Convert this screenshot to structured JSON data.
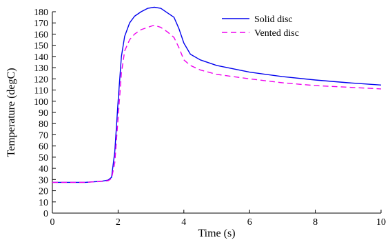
{
  "chart_data": {
    "type": "line",
    "title": "",
    "xlabel": "Time (s)",
    "ylabel": "Temperature (degC)",
    "xlim": [
      0,
      10
    ],
    "ylim": [
      0,
      180
    ],
    "xticks": [
      0,
      2,
      4,
      6,
      8,
      10
    ],
    "yticks": [
      0,
      10,
      20,
      30,
      40,
      50,
      60,
      70,
      80,
      90,
      100,
      110,
      120,
      130,
      140,
      150,
      160,
      170,
      180
    ],
    "grid": false,
    "legend": "top-right",
    "series": [
      {
        "name": "Solid disc",
        "color": "#0000ee",
        "dash": "solid",
        "x": [
          0,
          1.0,
          1.5,
          1.7,
          1.8,
          1.9,
          2.0,
          2.1,
          2.2,
          2.35,
          2.5,
          2.7,
          2.9,
          3.1,
          3.3,
          3.5,
          3.7,
          3.85,
          4.0,
          4.2,
          4.5,
          5.0,
          6.0,
          7.0,
          8.0,
          9.0,
          10.0
        ],
        "y": [
          27.5,
          27.5,
          28.5,
          29.5,
          32,
          55,
          100,
          140,
          158,
          170,
          176,
          180,
          183,
          184,
          183,
          179,
          175,
          165,
          152,
          142,
          137,
          132,
          126,
          122,
          119,
          116.5,
          114.5
        ]
      },
      {
        "name": "Vented disc",
        "color": "#ee00ee",
        "dash": "dashed",
        "x": [
          0,
          1.0,
          1.5,
          1.7,
          1.8,
          1.9,
          2.0,
          2.1,
          2.2,
          2.35,
          2.5,
          2.7,
          2.9,
          3.1,
          3.3,
          3.5,
          3.7,
          3.85,
          4.0,
          4.2,
          4.5,
          5.0,
          6.0,
          7.0,
          8.0,
          9.0,
          10.0
        ],
        "y": [
          27.5,
          27.5,
          28.3,
          29,
          31,
          45,
          85,
          125,
          145,
          155,
          160,
          164,
          166,
          168,
          166,
          162,
          157,
          148,
          137,
          132,
          128,
          124,
          120,
          116.5,
          114,
          112.5,
          111
        ]
      }
    ]
  }
}
